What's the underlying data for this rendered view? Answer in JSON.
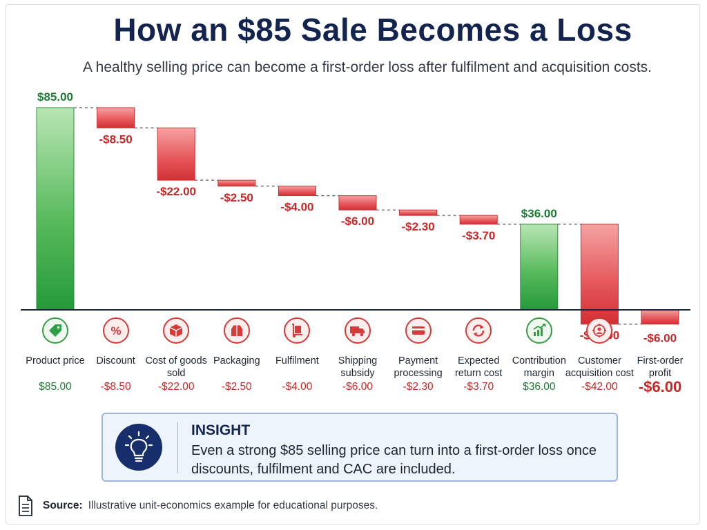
{
  "title": "How an $85 Sale Becomes a Loss",
  "subtitle": "A healthy selling price can become a first-order loss after fulfilment and acquisition costs.",
  "colors": {
    "positive": "#2f9e44",
    "negative": "#d63b3b",
    "positive_text": "#1f7a35",
    "negative_text": "#c62828",
    "navy": "#13254f"
  },
  "chart_data": {
    "type": "bar",
    "subtype": "waterfall",
    "categories": [
      "Product price",
      "Discount",
      "Cost of goods sold",
      "Packaging",
      "Fulfilment",
      "Shipping subsidy",
      "Payment processing",
      "Expected return cost",
      "Contribution margin",
      "Customer acquisition cost",
      "First-order profit"
    ],
    "values": [
      85.0,
      -8.5,
      -22.0,
      -2.5,
      -4.0,
      -6.0,
      -2.3,
      -3.7,
      36.0,
      -42.0,
      -6.0
    ],
    "value_labels": [
      "$85.00",
      "-$8.50",
      "-$22.00",
      "-$2.50",
      "-$4.00",
      "-$6.00",
      "-$2.30",
      "-$3.70",
      "$36.00",
      "-$42.00",
      "-$6.00"
    ],
    "kinds": [
      "total",
      "delta",
      "delta",
      "delta",
      "delta",
      "delta",
      "delta",
      "delta",
      "total",
      "delta",
      "total"
    ],
    "ylim": [
      -6,
      85
    ],
    "grid": false,
    "title": "How an $85 Sale Becomes a Loss",
    "xlabel": "",
    "ylabel": ""
  },
  "categories": [
    {
      "label": "Product price",
      "value": "$85.00",
      "tone": "pos",
      "icon": "tag-icon"
    },
    {
      "label": "Discount",
      "value": "-$8.50",
      "tone": "neg",
      "icon": "percent-icon"
    },
    {
      "label": "Cost of goods sold",
      "value": "-$22.00",
      "tone": "neg",
      "icon": "box-icon"
    },
    {
      "label": "Packaging",
      "value": "-$2.50",
      "tone": "neg",
      "icon": "package-icon"
    },
    {
      "label": "Fulfilment",
      "value": "-$4.00",
      "tone": "neg",
      "icon": "hand-truck-icon"
    },
    {
      "label": "Shipping subsidy",
      "value": "-$6.00",
      "tone": "neg",
      "icon": "truck-icon"
    },
    {
      "label": "Payment processing",
      "value": "-$2.30",
      "tone": "neg",
      "icon": "credit-card-icon"
    },
    {
      "label": "Expected return cost",
      "value": "-$3.70",
      "tone": "neg",
      "icon": "return-arrows-icon"
    },
    {
      "label": "Contribution margin",
      "value": "$36.00",
      "tone": "pos",
      "icon": "growth-chart-icon"
    },
    {
      "label": "Customer acquisition cost",
      "value": "-$42.00",
      "tone": "neg",
      "icon": "target-user-icon"
    },
    {
      "label": "First-order profit",
      "value": "-$6.00",
      "tone": "big",
      "icon": ""
    }
  ],
  "insight": {
    "heading": "INSIGHT",
    "body": "Even a strong $85 selling price can turn into a first-order loss once discounts, fulfilment and CAC are included.",
    "icon": "lightbulb-icon"
  },
  "source": {
    "label": "Source:",
    "text": "Illustrative unit-economics example for educational purposes.",
    "icon": "document-icon"
  }
}
